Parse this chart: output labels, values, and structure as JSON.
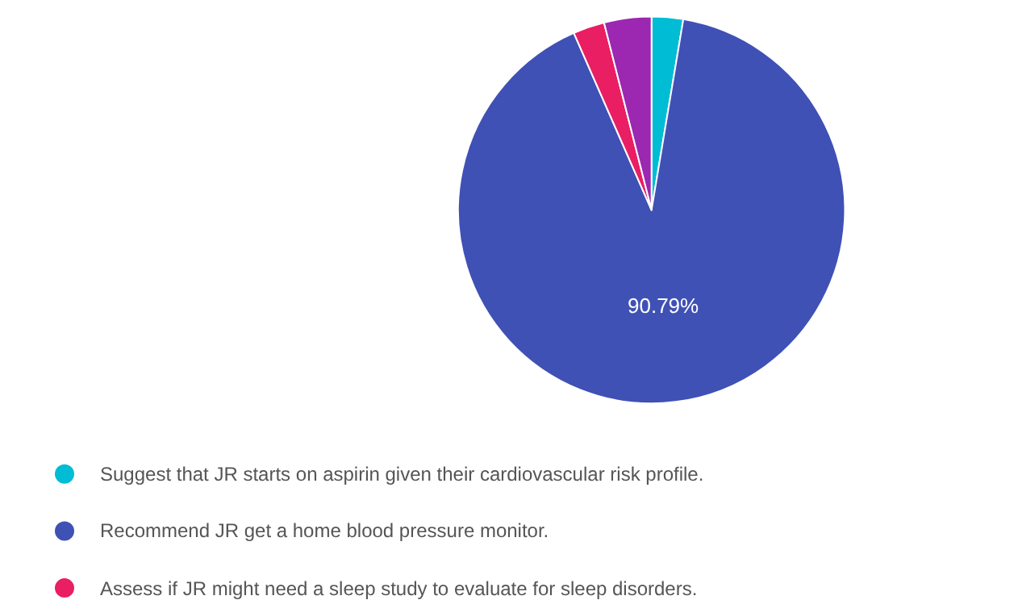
{
  "chart_data": {
    "type": "pie",
    "categories": [
      "Suggest that JR starts on aspirin given their cardiovascular risk profile.",
      "Recommend JR get a home blood pressure monitor.",
      "Assess if JR might need a sleep study to evaluate for sleep disorders.",
      null
    ],
    "values": [
      2.63,
      90.79,
      2.63,
      3.95
    ],
    "colors": [
      "#00bcd4",
      "#3f51b5",
      "#e91e63",
      "#9c27b0"
    ],
    "value_labels": [
      null,
      "90.79%",
      null,
      null
    ],
    "legend": "bottom"
  }
}
